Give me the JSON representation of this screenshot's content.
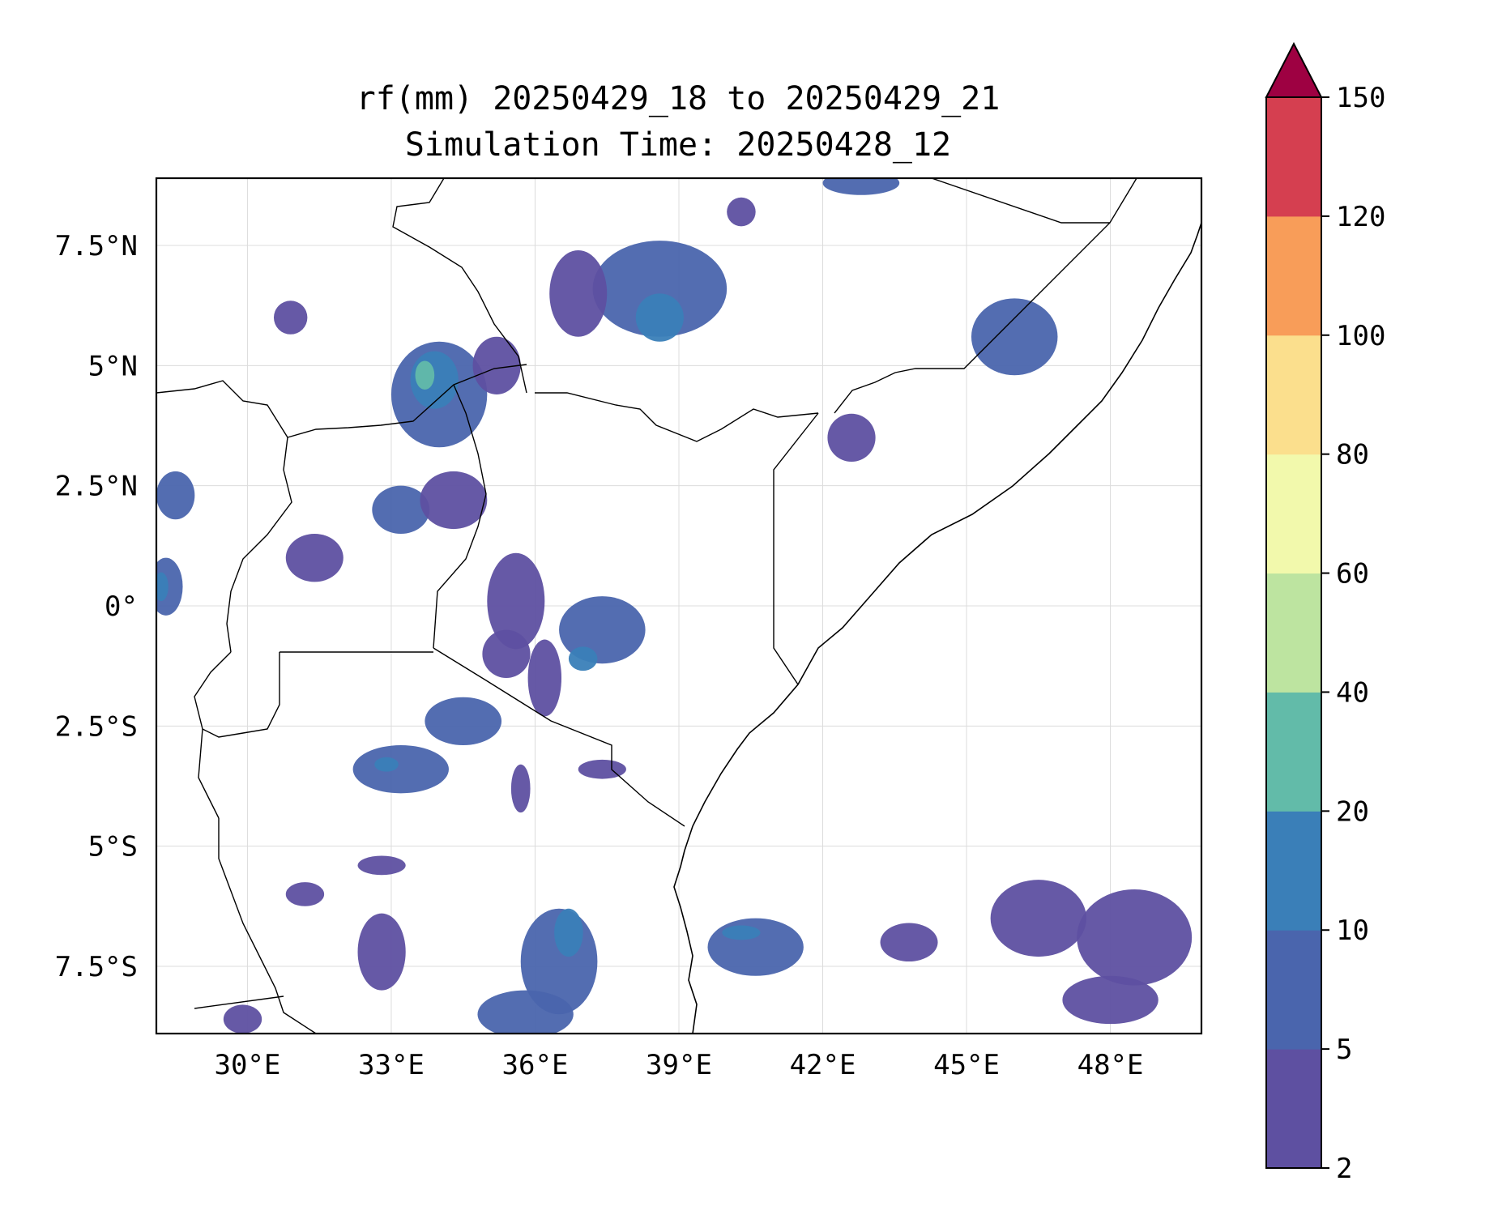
{
  "title": {
    "line1": "rf(mm) 20250429_18 to 20250429_21",
    "line2": "Simulation Time: 20250428_12"
  },
  "map": {
    "lon_range": [
      28.1,
      49.9
    ],
    "lat_range": [
      -8.9,
      8.9
    ],
    "gridlines": true,
    "lon_ticks": [
      {
        "value": 30,
        "label": "30°E"
      },
      {
        "value": 33,
        "label": "33°E"
      },
      {
        "value": 36,
        "label": "36°E"
      },
      {
        "value": 39,
        "label": "39°E"
      },
      {
        "value": 42,
        "label": "42°E"
      },
      {
        "value": 45,
        "label": "45°E"
      },
      {
        "value": 48,
        "label": "48°E"
      }
    ],
    "lat_ticks": [
      {
        "value": 7.5,
        "label": "7.5°N"
      },
      {
        "value": 5,
        "label": "5°N"
      },
      {
        "value": 2.5,
        "label": "2.5°N"
      },
      {
        "value": 0,
        "label": "0°"
      },
      {
        "value": -2.5,
        "label": "2.5°S"
      },
      {
        "value": -5,
        "label": "5°S"
      },
      {
        "value": -7.5,
        "label": "7.5°S"
      }
    ]
  },
  "colorbar": {
    "levels": [
      {
        "value": 2,
        "label": "2"
      },
      {
        "value": 5,
        "label": "5"
      },
      {
        "value": 10,
        "label": "10"
      },
      {
        "value": 20,
        "label": "20"
      },
      {
        "value": 40,
        "label": "40"
      },
      {
        "value": 60,
        "label": "60"
      },
      {
        "value": 80,
        "label": "80"
      },
      {
        "value": 100,
        "label": "100"
      },
      {
        "value": 120,
        "label": "120"
      },
      {
        "value": 150,
        "label": "150"
      }
    ],
    "colors": [
      "#5e50a1",
      "#4a65ad",
      "#3a7fb8",
      "#62bba9",
      "#bde4a0",
      "#f2f9ac",
      "#fbdf8d",
      "#f89d59",
      "#d53f50"
    ],
    "extend_color": "#9e0142",
    "extend": "max"
  },
  "chart_data": {
    "type": "heatmap",
    "variable": "rf(mm)",
    "units": "mm",
    "rain_cells": [
      {
        "lon": 34.0,
        "lat": 4.4,
        "rx": 1.0,
        "ry": 1.1,
        "level": 2
      },
      {
        "lon": 33.9,
        "lat": 4.7,
        "rx": 0.5,
        "ry": 0.6,
        "level": 3
      },
      {
        "lon": 33.7,
        "lat": 4.8,
        "rx": 0.2,
        "ry": 0.3,
        "level": 4
      },
      {
        "lon": 30.9,
        "lat": 6.0,
        "rx": 0.35,
        "ry": 0.35,
        "level": 1
      },
      {
        "lon": 38.6,
        "lat": 6.6,
        "rx": 1.4,
        "ry": 1.0,
        "level": 2
      },
      {
        "lon": 38.6,
        "lat": 6.0,
        "rx": 0.5,
        "ry": 0.5,
        "level": 3
      },
      {
        "lon": 40.3,
        "lat": 8.2,
        "rx": 0.3,
        "ry": 0.3,
        "level": 1
      },
      {
        "lon": 36.9,
        "lat": 6.5,
        "rx": 0.6,
        "ry": 0.9,
        "level": 1
      },
      {
        "lon": 35.2,
        "lat": 5.0,
        "rx": 0.5,
        "ry": 0.6,
        "level": 1
      },
      {
        "lon": 46.0,
        "lat": 5.6,
        "rx": 0.9,
        "ry": 0.8,
        "level": 2
      },
      {
        "lon": 42.8,
        "lat": 8.8,
        "rx": 0.8,
        "ry": 0.25,
        "level": 2
      },
      {
        "lon": 28.5,
        "lat": 2.3,
        "rx": 0.4,
        "ry": 0.5,
        "level": 2
      },
      {
        "lon": 28.3,
        "lat": 0.4,
        "rx": 0.35,
        "ry": 0.6,
        "level": 2
      },
      {
        "lon": 28.2,
        "lat": 0.4,
        "rx": 0.15,
        "ry": 0.3,
        "level": 3
      },
      {
        "lon": 33.2,
        "lat": 2.0,
        "rx": 0.6,
        "ry": 0.5,
        "level": 2
      },
      {
        "lon": 34.3,
        "lat": 2.2,
        "rx": 0.7,
        "ry": 0.6,
        "level": 1
      },
      {
        "lon": 31.4,
        "lat": 1.0,
        "rx": 0.6,
        "ry": 0.5,
        "level": 1
      },
      {
        "lon": 35.6,
        "lat": 0.1,
        "rx": 0.6,
        "ry": 1.0,
        "level": 1
      },
      {
        "lon": 37.4,
        "lat": -0.5,
        "rx": 0.9,
        "ry": 0.7,
        "level": 2
      },
      {
        "lon": 37.0,
        "lat": -1.1,
        "rx": 0.3,
        "ry": 0.25,
        "level": 3
      },
      {
        "lon": 36.2,
        "lat": -1.5,
        "rx": 0.35,
        "ry": 0.8,
        "level": 1
      },
      {
        "lon": 34.5,
        "lat": -2.4,
        "rx": 0.8,
        "ry": 0.5,
        "level": 2
      },
      {
        "lon": 33.2,
        "lat": -3.4,
        "rx": 1.0,
        "ry": 0.5,
        "level": 2
      },
      {
        "lon": 32.9,
        "lat": -3.3,
        "rx": 0.25,
        "ry": 0.15,
        "level": 3
      },
      {
        "lon": 37.4,
        "lat": -3.4,
        "rx": 0.5,
        "ry": 0.2,
        "level": 1
      },
      {
        "lon": 35.7,
        "lat": -3.8,
        "rx": 0.2,
        "ry": 0.5,
        "level": 1
      },
      {
        "lon": 36.5,
        "lat": -7.4,
        "rx": 0.8,
        "ry": 1.1,
        "level": 2
      },
      {
        "lon": 35.8,
        "lat": -8.5,
        "rx": 1.0,
        "ry": 0.5,
        "level": 2
      },
      {
        "lon": 36.7,
        "lat": -6.8,
        "rx": 0.3,
        "ry": 0.5,
        "level": 3
      },
      {
        "lon": 32.8,
        "lat": -7.2,
        "rx": 0.5,
        "ry": 0.8,
        "level": 1
      },
      {
        "lon": 31.2,
        "lat": -6.0,
        "rx": 0.4,
        "ry": 0.25,
        "level": 1
      },
      {
        "lon": 32.8,
        "lat": -5.4,
        "rx": 0.5,
        "ry": 0.2,
        "level": 1
      },
      {
        "lon": 40.6,
        "lat": -7.1,
        "rx": 1.0,
        "ry": 0.6,
        "level": 2
      },
      {
        "lon": 40.3,
        "lat": -6.8,
        "rx": 0.4,
        "ry": 0.15,
        "level": 3
      },
      {
        "lon": 29.9,
        "lat": -8.6,
        "rx": 0.4,
        "ry": 0.3,
        "level": 1
      },
      {
        "lon": 48.5,
        "lat": -6.9,
        "rx": 1.2,
        "ry": 1.0,
        "level": 1
      },
      {
        "lon": 46.5,
        "lat": -6.5,
        "rx": 1.0,
        "ry": 0.8,
        "level": 1
      },
      {
        "lon": 48.0,
        "lat": -8.2,
        "rx": 1.0,
        "ry": 0.5,
        "level": 1
      },
      {
        "lon": 43.8,
        "lat": -7.0,
        "rx": 0.6,
        "ry": 0.4,
        "level": 1
      },
      {
        "lon": 42.6,
        "lat": 3.5,
        "rx": 0.5,
        "ry": 0.5,
        "level": 1
      },
      {
        "lon": 35.4,
        "lat": -1.0,
        "rx": 0.5,
        "ry": 0.5,
        "level": 1
      }
    ]
  }
}
